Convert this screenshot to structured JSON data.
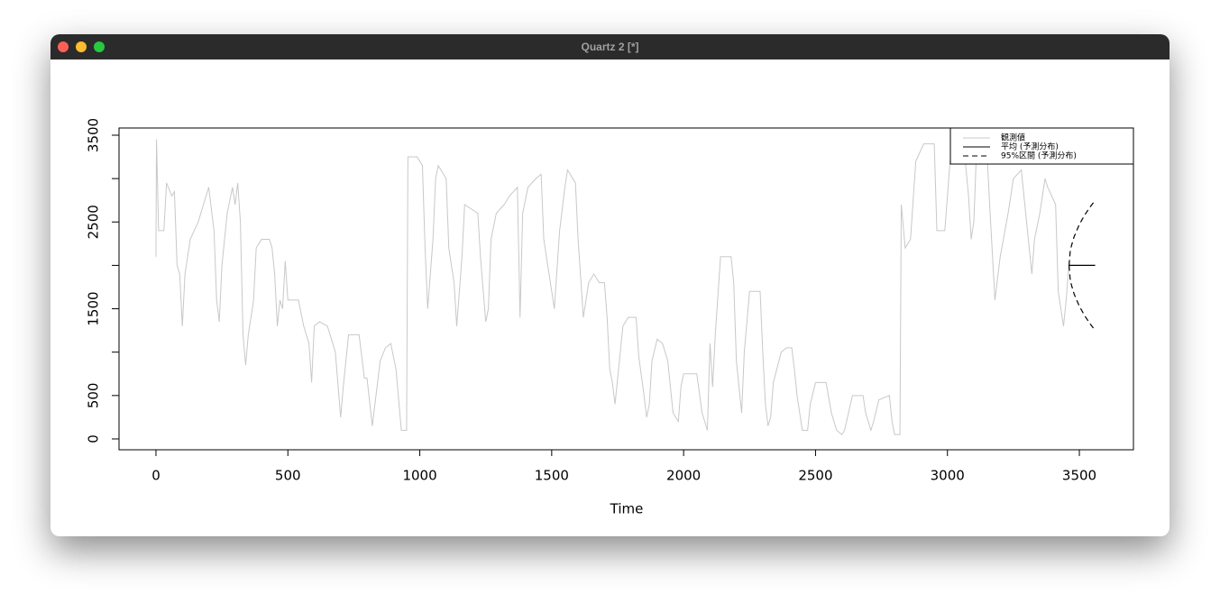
{
  "window": {
    "title": "Quartz 2 [*]"
  },
  "chart_data": {
    "type": "line",
    "xlabel": "Time",
    "xlim": [
      -140,
      3705
    ],
    "ylim": [
      -125,
      3583
    ],
    "xticks": [
      0,
      500,
      1000,
      1500,
      2000,
      2500,
      3000,
      3500
    ],
    "yticks": [
      0,
      500,
      1500,
      2500,
      3500
    ],
    "yminorticks": [
      1000,
      2000,
      3000
    ],
    "legend": "top-right",
    "series": [
      {
        "name": "観測値",
        "color": "#c8c8c8",
        "dash": "solid",
        "x": [
          0,
          2,
          10,
          30,
          40,
          60,
          70,
          80,
          90,
          100,
          110,
          130,
          160,
          180,
          200,
          220,
          230,
          240,
          250,
          270,
          290,
          300,
          310,
          320,
          330,
          340,
          350,
          370,
          380,
          400,
          430,
          440,
          450,
          460,
          470,
          480,
          490,
          500,
          540,
          550,
          560,
          580,
          590,
          600,
          620,
          650,
          680,
          700,
          710,
          730,
          770,
          790,
          800,
          820,
          830,
          850,
          870,
          890,
          910,
          930,
          950,
          955,
          990,
          1010,
          1020,
          1030,
          1040,
          1050,
          1060,
          1070,
          1100,
          1110,
          1130,
          1140,
          1150,
          1160,
          1170,
          1220,
          1230,
          1250,
          1260,
          1270,
          1290,
          1320,
          1340,
          1370,
          1380,
          1390,
          1410,
          1440,
          1460,
          1470,
          1490,
          1510,
          1530,
          1550,
          1560,
          1590,
          1600,
          1620,
          1640,
          1660,
          1680,
          1700,
          1710,
          1720,
          1730,
          1740,
          1750,
          1770,
          1790,
          1820,
          1830,
          1850,
          1860,
          1870,
          1880,
          1900,
          1920,
          1940,
          1960,
          1980,
          1990,
          2000,
          2050,
          2070,
          2090,
          2100,
          2110,
          2120,
          2140,
          2180,
          2190,
          2200,
          2210,
          2220,
          2230,
          2250,
          2290,
          2300,
          2310,
          2320,
          2330,
          2340,
          2370,
          2390,
          2410,
          2420,
          2430,
          2450,
          2470,
          2480,
          2500,
          2540,
          2560,
          2580,
          2600,
          2610,
          2640,
          2680,
          2690,
          2710,
          2720,
          2740,
          2780,
          2790,
          2800,
          2820,
          2825,
          2840,
          2860,
          2880,
          2910,
          2950,
          2960,
          2990,
          3000,
          3010,
          3030,
          3060,
          3080,
          3090,
          3100,
          3110,
          3150,
          3160,
          3180,
          3200,
          3230,
          3250,
          3280,
          3290,
          3320,
          3330,
          3350,
          3370,
          3380,
          3410,
          3420,
          3440,
          3450,
          3460
        ],
        "values": [
          2100,
          3450,
          2400,
          2400,
          2950,
          2800,
          2850,
          2000,
          1900,
          1300,
          1900,
          2300,
          2500,
          2700,
          2900,
          2400,
          1600,
          1350,
          2000,
          2600,
          2900,
          2700,
          2950,
          2500,
          1200,
          850,
          1200,
          1600,
          2200,
          2300,
          2300,
          2200,
          1900,
          1300,
          1600,
          1500,
          2050,
          1600,
          1600,
          1450,
          1300,
          1100,
          650,
          1300,
          1350,
          1300,
          1000,
          250,
          600,
          1200,
          1200,
          700,
          700,
          150,
          400,
          900,
          1050,
          1100,
          800,
          100,
          100,
          3250,
          3250,
          3150,
          2200,
          1500,
          1900,
          2300,
          3000,
          3150,
          3000,
          2200,
          1800,
          1300,
          1700,
          2100,
          2700,
          2600,
          2100,
          1350,
          1500,
          2300,
          2600,
          2700,
          2800,
          2900,
          1400,
          2600,
          2900,
          3000,
          3050,
          2300,
          1900,
          1500,
          2400,
          2900,
          3100,
          2950,
          2300,
          1400,
          1800,
          1900,
          1800,
          1800,
          1400,
          800,
          650,
          400,
          700,
          1300,
          1400,
          1400,
          950,
          500,
          250,
          400,
          900,
          1150,
          1100,
          900,
          300,
          200,
          600,
          750,
          750,
          300,
          100,
          1100,
          600,
          1200,
          2100,
          2100,
          1800,
          900,
          600,
          300,
          1000,
          1700,
          1700,
          1000,
          400,
          150,
          250,
          650,
          1000,
          1050,
          1050,
          800,
          500,
          100,
          100,
          400,
          650,
          650,
          300,
          100,
          50,
          100,
          500,
          500,
          300,
          100,
          200,
          450,
          500,
          200,
          50,
          50,
          2700,
          2200,
          2300,
          3200,
          3400,
          3400,
          2400,
          2400,
          2800,
          3200,
          3400,
          3450,
          2800,
          2300,
          2500,
          3300,
          3300,
          2700,
          1600,
          2100,
          2600,
          3000,
          3100,
          2800,
          1900,
          2300,
          2600,
          3000,
          2900,
          2700,
          1700,
          1300,
          1600,
          2000
        ]
      },
      {
        "name": "平均 (予測分布)",
        "color": "#000000",
        "dash": "solid",
        "x": [
          3461,
          3560
        ],
        "values": [
          2000,
          2000
        ]
      },
      {
        "name": "95%区間 (予測分布)",
        "color": "#000000",
        "dash": "dashed",
        "x": [
          3461,
          3465,
          3470,
          3480,
          3500,
          3520,
          3540,
          3560
        ],
        "values": [
          2000,
          2151,
          2226,
          2329,
          2471,
          2579,
          2670,
          2750
        ],
        "lower": [
          2000,
          1849,
          1774,
          1671,
          1529,
          1421,
          1330,
          1250
        ]
      }
    ]
  }
}
